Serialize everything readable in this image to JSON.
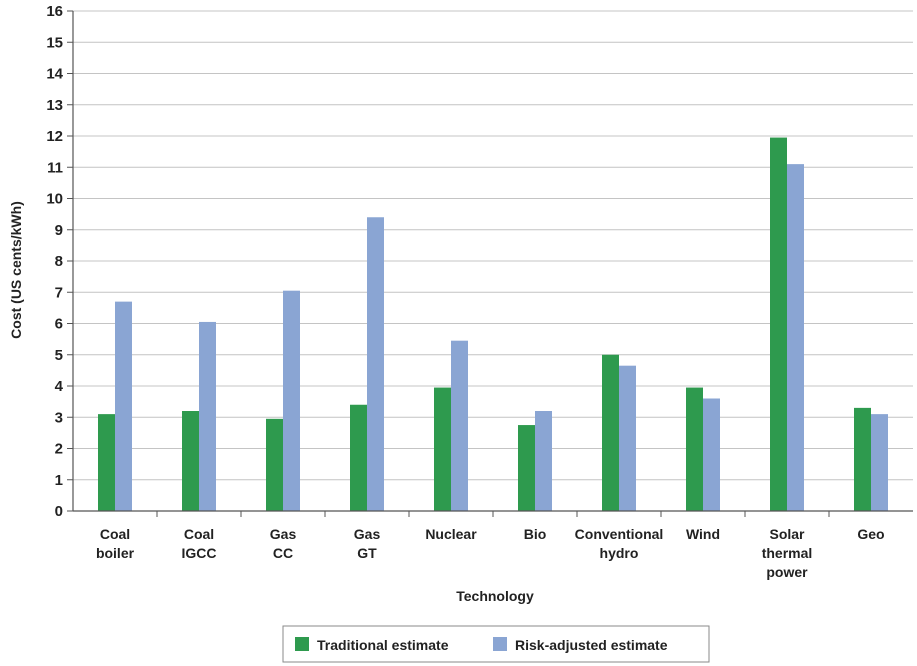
{
  "chart_data": {
    "type": "bar",
    "title": "",
    "xlabel": "Technology",
    "ylabel": "Cost (US cents/kWh)",
    "ylim": [
      0,
      16
    ],
    "yticks": [
      0,
      1,
      2,
      3,
      4,
      5,
      6,
      7,
      8,
      9,
      10,
      11,
      12,
      13,
      14,
      15,
      16
    ],
    "grid": true,
    "legend_position": "bottom",
    "categories": [
      [
        "Coal",
        "boiler"
      ],
      [
        "Coal",
        "IGCC"
      ],
      [
        "Gas",
        "CC"
      ],
      [
        "Gas",
        "GT"
      ],
      [
        "Nuclear"
      ],
      [
        "Bio"
      ],
      [
        "Conventional",
        "hydro"
      ],
      [
        "Wind"
      ],
      [
        "Solar",
        "thermal",
        "power"
      ],
      [
        "Geo"
      ]
    ],
    "series": [
      {
        "name": "Traditional estimate",
        "color": "#2e9a4e",
        "values": [
          3.1,
          3.2,
          2.95,
          3.4,
          3.95,
          2.75,
          5.0,
          3.95,
          11.95,
          3.3
        ]
      },
      {
        "name": "Risk-adjusted estimate",
        "color": "#8aa5d3",
        "values": [
          6.7,
          6.05,
          7.05,
          9.4,
          5.45,
          3.2,
          4.65,
          3.6,
          11.1,
          3.1
        ]
      }
    ]
  }
}
